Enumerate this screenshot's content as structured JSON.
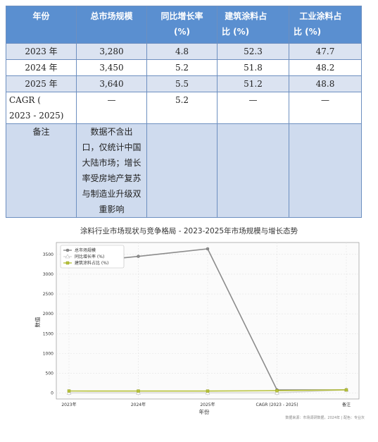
{
  "table": {
    "headers": [
      "年份",
      "总市场规模",
      "同比增长率",
      "(%)",
      "建筑涂料占",
      "比 (%)",
      "工业涂料占",
      "比 (%)"
    ],
    "rows": [
      {
        "year": "2023 年",
        "size": "3,280",
        "growth": "4.8",
        "arch": "52.3",
        "ind": "47.7"
      },
      {
        "year": "2024 年",
        "size": "3,450",
        "growth": "5.2",
        "arch": "51.8",
        "ind": "48.2"
      },
      {
        "year": "2025 年",
        "size": "3,640",
        "growth": "5.5",
        "arch": "51.2",
        "ind": "48.8"
      }
    ],
    "cagr": {
      "label1": "CAGR (",
      "label2": "2023 - 2025)",
      "size": "—",
      "growth": "5.2",
      "arch": "—",
      "ind": "—"
    },
    "note": {
      "label": "备注",
      "lines": [
        "数据不含出",
        "口，仅统计中国",
        "大陆市场；增长",
        "率受房地产复苏",
        "与制造业升级双",
        "重影响"
      ]
    }
  },
  "chart_data": {
    "type": "line",
    "title": "涂料行业市场现状与竞争格局 - 2023-2025年市场规模与增长态势",
    "xlabel": "年份",
    "ylabel": "数值",
    "categories": [
      "2023年",
      "2024年",
      "2025年",
      "CAGR (2023 - 2025)",
      "备注"
    ],
    "ylim": [
      -150,
      3800
    ],
    "yticks": [
      0,
      500,
      1000,
      1500,
      2000,
      2500,
      3000,
      3500
    ],
    "grid": true,
    "legend_position": "top-left",
    "series": [
      {
        "name": "总市场规模",
        "values": [
          3280,
          3450,
          3640,
          80,
          80
        ],
        "color": "#8c8c8c",
        "marker": "circle"
      },
      {
        "name": "同比增长率 (%)",
        "values": [
          4.8,
          5.2,
          5.5,
          5.2,
          80
        ],
        "color": "#d9d9d9",
        "marker": "triangle"
      },
      {
        "name": "建筑涂料占比 (%)",
        "values": [
          52.3,
          51.8,
          51.2,
          60,
          80
        ],
        "color": "#b7c23a",
        "marker": "square"
      }
    ],
    "source": "数据来源：市场调研数据，2024年 | 配色：专业灰"
  }
}
